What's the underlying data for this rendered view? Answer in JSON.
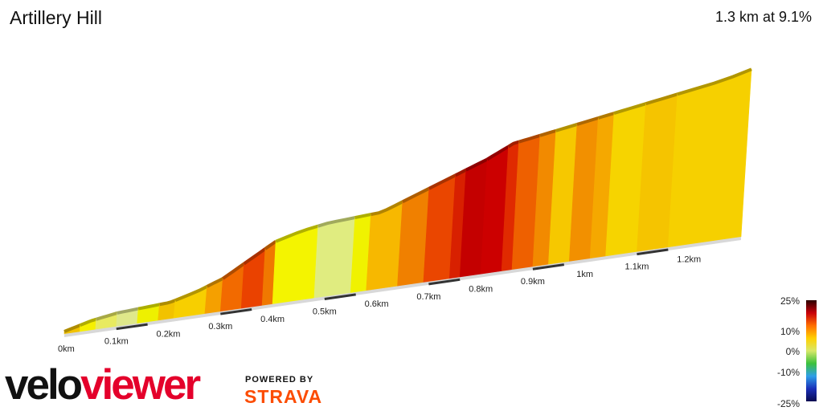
{
  "header": {
    "title": "Artillery Hill",
    "summary": "1.3 km at 9.1%"
  },
  "legend": {
    "labels": [
      "25%",
      "10%",
      "0%",
      "-10%",
      "-25%"
    ],
    "colors": [
      "#2b0000",
      "#c8000a",
      "#ff6e00",
      "#ffd000",
      "#d8e86a",
      "#3cc13c",
      "#2f9fe8",
      "#1a2fb8",
      "#0a0a50"
    ]
  },
  "branding": {
    "velo": "velo",
    "viewer": "viewer",
    "powered_by": "POWERED BY",
    "strava": "STRAVA"
  },
  "chart_data": {
    "type": "area",
    "title": "Artillery Hill",
    "xlabel": "",
    "ylabel": "",
    "x_unit": "km",
    "xlim": [
      0,
      1.3
    ],
    "tick_labels": [
      "0km",
      "0.1km",
      "0.2km",
      "0.3km",
      "0.4km",
      "0.5km",
      "0.6km",
      "0.7km",
      "0.8km",
      "0.9km",
      "1km",
      "1.1km",
      "1.2km"
    ],
    "ticks": [
      0,
      0.1,
      0.2,
      0.3,
      0.4,
      0.5,
      0.6,
      0.7,
      0.8,
      0.9,
      1.0,
      1.1,
      1.2
    ],
    "profile": {
      "distance_km": [
        0,
        0.05,
        0.1,
        0.15,
        0.2,
        0.25,
        0.3,
        0.35,
        0.4,
        0.45,
        0.5,
        0.55,
        0.6,
        0.65,
        0.7,
        0.75,
        0.8,
        0.85,
        0.9,
        0.95,
        1.0,
        1.05,
        1.1,
        1.15,
        1.2,
        1.25,
        1.3
      ],
      "relative_height": [
        0,
        0.04,
        0.07,
        0.09,
        0.11,
        0.15,
        0.2,
        0.27,
        0.34,
        0.38,
        0.41,
        0.43,
        0.45,
        0.5,
        0.55,
        0.6,
        0.65,
        0.71,
        0.74,
        0.77,
        0.8,
        0.83,
        0.86,
        0.89,
        0.92,
        0.95,
        0.99
      ]
    },
    "segments": [
      {
        "from": 0.0,
        "to": 0.03,
        "color": "#f2c200"
      },
      {
        "from": 0.03,
        "to": 0.06,
        "color": "#f6f000"
      },
      {
        "from": 0.06,
        "to": 0.1,
        "color": "#e8ea60"
      },
      {
        "from": 0.1,
        "to": 0.14,
        "color": "#dfe88a"
      },
      {
        "from": 0.14,
        "to": 0.18,
        "color": "#eef000"
      },
      {
        "from": 0.18,
        "to": 0.21,
        "color": "#f2c200"
      },
      {
        "from": 0.21,
        "to": 0.27,
        "color": "#f7cf00"
      },
      {
        "from": 0.27,
        "to": 0.3,
        "color": "#f5a000"
      },
      {
        "from": 0.3,
        "to": 0.34,
        "color": "#f26a00"
      },
      {
        "from": 0.34,
        "to": 0.38,
        "color": "#ea4200"
      },
      {
        "from": 0.38,
        "to": 0.4,
        "color": "#f07800"
      },
      {
        "from": 0.4,
        "to": 0.48,
        "color": "#f4f400"
      },
      {
        "from": 0.48,
        "to": 0.55,
        "color": "#e0ec80"
      },
      {
        "from": 0.55,
        "to": 0.58,
        "color": "#f0f200"
      },
      {
        "from": 0.58,
        "to": 0.64,
        "color": "#f7b800"
      },
      {
        "from": 0.64,
        "to": 0.69,
        "color": "#f08000"
      },
      {
        "from": 0.69,
        "to": 0.74,
        "color": "#ea4600"
      },
      {
        "from": 0.74,
        "to": 0.76,
        "color": "#d82000"
      },
      {
        "from": 0.76,
        "to": 0.8,
        "color": "#c40000"
      },
      {
        "from": 0.8,
        "to": 0.84,
        "color": "#cc0000"
      },
      {
        "from": 0.84,
        "to": 0.86,
        "color": "#e02a00"
      },
      {
        "from": 0.86,
        "to": 0.9,
        "color": "#ee6000"
      },
      {
        "from": 0.9,
        "to": 0.93,
        "color": "#f28a00"
      },
      {
        "from": 0.93,
        "to": 0.97,
        "color": "#f6c800"
      },
      {
        "from": 0.97,
        "to": 1.01,
        "color": "#f29000"
      },
      {
        "from": 1.01,
        "to": 1.04,
        "color": "#f5a800"
      },
      {
        "from": 1.04,
        "to": 1.1,
        "color": "#f6d400"
      },
      {
        "from": 1.1,
        "to": 1.16,
        "color": "#f5c400"
      },
      {
        "from": 1.16,
        "to": 1.3,
        "color": "#f6d000"
      }
    ]
  }
}
